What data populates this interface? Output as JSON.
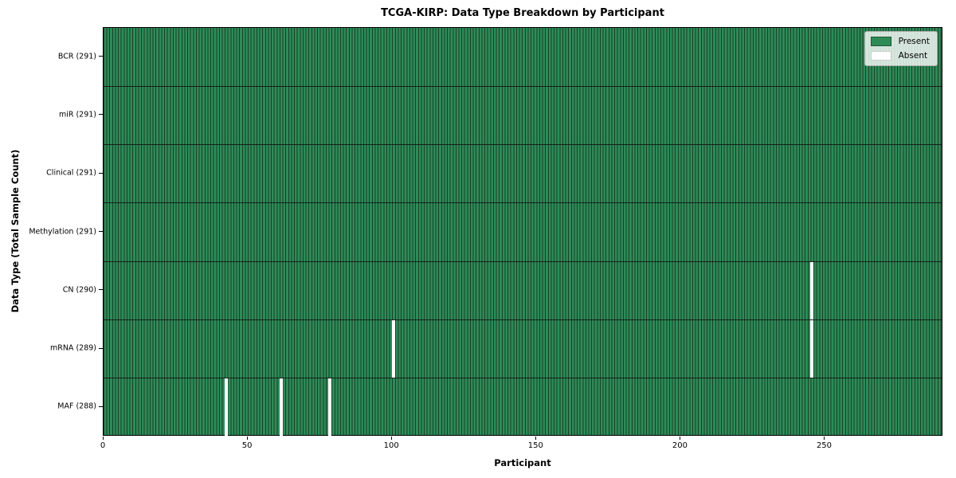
{
  "chart_data": {
    "type": "heatmap",
    "title": "TCGA-KIRP: Data Type Breakdown by Participant",
    "xlabel": "Participant",
    "ylabel": "Data Type (Total Sample Count)",
    "x_ticks": [
      0,
      50,
      100,
      150,
      200,
      250
    ],
    "x_range": [
      0,
      291
    ],
    "n_participants": 291,
    "rows": [
      {
        "name": "BCR",
        "label": "BCR (291)",
        "present_count": 291,
        "absent_participants": []
      },
      {
        "name": "miR",
        "label": "miR (291)",
        "present_count": 291,
        "absent_participants": []
      },
      {
        "name": "Clinical",
        "label": "Clinical (291)",
        "present_count": 291,
        "absent_participants": []
      },
      {
        "name": "Methylation",
        "label": "Methylation (291)",
        "present_count": 291,
        "absent_participants": []
      },
      {
        "name": "CN",
        "label": "CN (290)",
        "present_count": 290,
        "absent_participants": [
          245
        ]
      },
      {
        "name": "mRNA",
        "label": "mRNA (289)",
        "present_count": 289,
        "absent_participants": [
          100,
          245
        ]
      },
      {
        "name": "MAF",
        "label": "MAF (288)",
        "present_count": 288,
        "absent_participants": [
          42,
          61,
          78
        ]
      }
    ],
    "legend": [
      {
        "label": "Present",
        "color": "#2e8b57"
      },
      {
        "label": "Absent",
        "color": "#ffffff"
      }
    ],
    "colors": {
      "present": "#2e8b57",
      "absent": "#ffffff",
      "bar_edge": "#16402a",
      "row_boundary": "#111111",
      "frame": "#000000",
      "legend_background": "rgba(255,255,255,0.8)"
    },
    "grid": "row-boundaries-only",
    "legend_position": "upper right"
  }
}
